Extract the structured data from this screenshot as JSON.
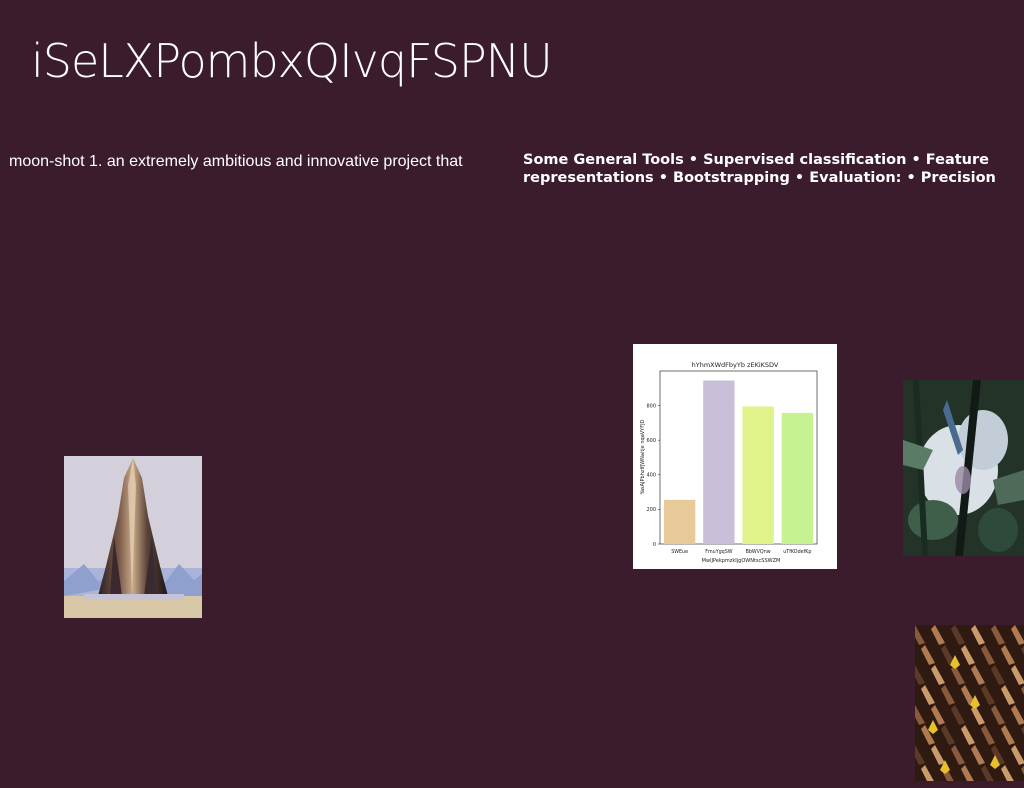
{
  "page": {
    "title": "iSeLXPombxQIvqFSPNU",
    "left_text": "moon-shot 1. an extremely ambitious and innovative project that",
    "right_text": "Some General Tools • Supervised classification • Feature representations • Bootstrapping • Evaluation: • Precision",
    "background_color": "#3b1c2d"
  },
  "images": {
    "tower": "tower-image",
    "forest": "forest-image",
    "pattern": "pattern-image"
  },
  "chart_data": {
    "type": "bar",
    "title": "hYhmXWdFbyYb zEKiKSDV",
    "xlabel": "MwlJPekpmzkIjgOWNtscSSWZM",
    "ylabel": "YasAJPbhzIfJWNaitje nqaVYFJD",
    "categories": [
      "SWEue",
      "FmuYgqSW",
      "BbWVQnw",
      "uTfKOdefKp"
    ],
    "values": [
      255,
      945,
      795,
      758
    ],
    "colors": [
      "#e8c99a",
      "#c9bfd8",
      "#e0f28a",
      "#c6f291"
    ],
    "ylim": [
      0,
      1000
    ],
    "yticks": [
      0,
      200,
      400,
      600,
      800
    ],
    "grid": false
  }
}
